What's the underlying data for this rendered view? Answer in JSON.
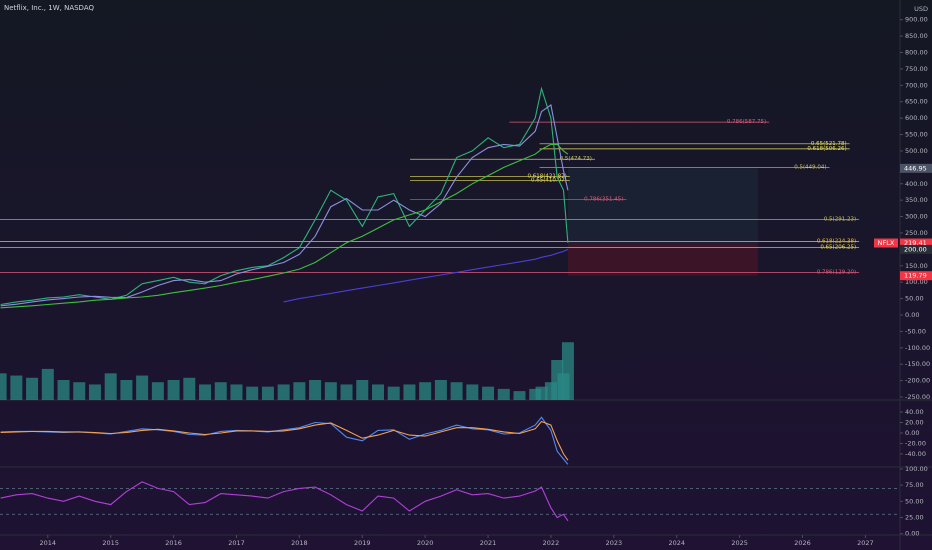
{
  "chart_data": [
    {
      "type": "line",
      "title": "Netflix, Inc., 1W, NASDAQ",
      "currency": "USD",
      "symbol": "NFLX",
      "x": [
        2013.25,
        2013.5,
        2013.75,
        2014,
        2014.25,
        2014.5,
        2014.75,
        2015,
        2015.25,
        2015.5,
        2015.75,
        2016,
        2016.25,
        2016.5,
        2016.75,
        2017,
        2017.25,
        2017.5,
        2017.75,
        2018,
        2018.25,
        2018.5,
        2018.75,
        2019,
        2019.25,
        2019.5,
        2019.75,
        2020,
        2020.25,
        2020.5,
        2020.75,
        2021,
        2021.25,
        2021.5,
        2021.75,
        2021.85,
        2022,
        2022.1,
        2022.2,
        2022.27
      ],
      "xlim": [
        2013.24,
        2027.55
      ],
      "xticks": [
        2014,
        2015,
        2016,
        2017,
        2018,
        2019,
        2020,
        2021,
        2022,
        2023,
        2024,
        2025,
        2026,
        2027
      ],
      "ylim": [
        -259,
        960
      ],
      "yticks": [
        {
          "value": 900,
          "label": "900.00"
        },
        {
          "value": 850,
          "label": "850.00"
        },
        {
          "value": 800,
          "label": "800.00"
        },
        {
          "value": 750,
          "label": "750.00"
        },
        {
          "value": 700,
          "label": "700.00"
        },
        {
          "value": 650,
          "label": "650.00"
        },
        {
          "value": 600,
          "label": "600.00"
        },
        {
          "value": 550,
          "label": "550.00"
        },
        {
          "value": 500,
          "label": "500.00"
        },
        {
          "value": 450,
          "label": "450.00"
        },
        {
          "value": 400,
          "label": "400.00"
        },
        {
          "value": 350,
          "label": "350.00"
        },
        {
          "value": 300,
          "label": "300.00"
        },
        {
          "value": 250,
          "label": "250.00"
        },
        {
          "value": 150,
          "label": "150.00"
        },
        {
          "value": 100,
          "label": "100.00"
        },
        {
          "value": 50,
          "label": "50.00"
        },
        {
          "value": 0,
          "label": "0.00"
        },
        {
          "value": -50,
          "label": "-50.00"
        },
        {
          "value": -100,
          "label": "-100.00"
        },
        {
          "value": -150,
          "label": "-150.00"
        },
        {
          "value": -200,
          "label": "-200.00"
        },
        {
          "value": -250,
          "label": "-250.00"
        }
      ],
      "series": [
        {
          "color": "#2db37a",
          "values": [
            32,
            40,
            45,
            52,
            55,
            62,
            55,
            48,
            60,
            95,
            105,
            115,
            100,
            95,
            120,
            135,
            145,
            150,
            175,
            205,
            290,
            380,
            350,
            270,
            360,
            370,
            270,
            320,
            370,
            480,
            500,
            540,
            510,
            520,
            600,
            690,
            600,
            420,
            380,
            220
          ]
        },
        {
          "color": "#8a8fe0",
          "values": [
            28,
            33,
            40,
            46,
            50,
            55,
            57,
            54,
            53,
            70,
            90,
            105,
            108,
            100,
            105,
            125,
            138,
            148,
            160,
            185,
            240,
            330,
            355,
            320,
            320,
            350,
            320,
            300,
            340,
            420,
            480,
            510,
            520,
            515,
            560,
            620,
            640,
            540,
            440,
            380
          ]
        },
        {
          "color": "#3fbf3f",
          "values": [
            22,
            25,
            28,
            32,
            36,
            40,
            45,
            48,
            52,
            55,
            60,
            68,
            75,
            82,
            90,
            100,
            108,
            118,
            128,
            140,
            160,
            190,
            220,
            240,
            265,
            290,
            305,
            320,
            345,
            370,
            400,
            425,
            450,
            470,
            490,
            505,
            520,
            520,
            500,
            490
          ]
        },
        {
          "color": "#4b3fd6",
          "values": [
            null,
            null,
            null,
            null,
            null,
            null,
            null,
            null,
            null,
            null,
            null,
            null,
            null,
            null,
            null,
            null,
            null,
            null,
            40,
            50,
            58,
            66,
            74,
            82,
            90,
            98,
            106,
            114,
            122,
            130,
            138,
            146,
            154,
            162,
            170,
            176,
            182,
            188,
            194,
            200
          ]
        }
      ],
      "annotations": [
        {
          "text": "0.786(587.75)",
          "value": 587.75,
          "x0": 2021.34,
          "x1": 2025.47,
          "color": "#e05a7a"
        },
        {
          "text": "0.65(521.78)",
          "value": 521.78,
          "x0": 2021.82,
          "x1": 2026.75,
          "color": "#e8e05a"
        },
        {
          "text": "0.618(506.26)",
          "value": 506.26,
          "x0": 2021.82,
          "x1": 2026.75,
          "color": "#e8e05a"
        },
        {
          "text": "0.5(474.73)",
          "value": 474.73,
          "x0": 2019.76,
          "x1": 2022.7,
          "color": "#c9c26a"
        },
        {
          "text": "0.5(449.04)",
          "value": 449.04,
          "x0": 2021.82,
          "x1": 2026.43,
          "color": "#c9c26a"
        },
        {
          "text": "0.618(421.87)",
          "value": 421.87,
          "x0": 2019.76,
          "x1": 2022.3,
          "color": "#e8e05a"
        },
        {
          "text": "0.65(410.07)",
          "value": 410.07,
          "x0": 2019.76,
          "x1": 2022.3,
          "color": "#e8e05a"
        },
        {
          "text": "0.786(351.45)",
          "value": 351.45,
          "x0": 2019.76,
          "x1": 2023.2,
          "color": "#e05a7a"
        },
        {
          "text": "0.5(291.23)",
          "value": 291.23,
          "x0": 2013.24,
          "x1": 2026.9,
          "color": "#c9c26a"
        },
        {
          "text": "0.618(224.38)",
          "value": 224.38,
          "x0": 2013.24,
          "x1": 2026.9,
          "color": "#e8c04a"
        },
        {
          "text": "0.65(206.25)",
          "value": 206.25,
          "x0": 2013.24,
          "x1": 2026.9,
          "color": "#e8e05a"
        },
        {
          "text": "0.786(129.20)",
          "value": 129.2,
          "x0": 2013.24,
          "x1": 2026.9,
          "color": "#e05a7a"
        }
      ],
      "price_tags": [
        {
          "value": 446.95,
          "color": "#4b5366"
        },
        {
          "value": 219.41,
          "color": "#f23645"
        },
        {
          "value": 200,
          "label": "200.00",
          "color": "#2a2e39"
        },
        {
          "value": 119.79,
          "color": "#f23645"
        }
      ]
    },
    {
      "type": "bar",
      "ylim": [
        0,
        900
      ],
      "series": [
        {
          "color": "#2a8a86",
          "values": [
            60,
            55,
            50,
            70,
            45,
            40,
            35,
            60,
            45,
            55,
            40,
            45,
            50,
            35,
            40,
            35,
            30,
            30,
            35,
            40,
            45,
            40,
            35,
            45,
            35,
            30,
            35,
            40,
            45,
            40,
            35,
            30,
            25,
            20,
            25,
            30,
            40,
            90,
            60,
            130
          ]
        }
      ]
    },
    {
      "type": "line",
      "ylim": [
        -65,
        63
      ],
      "yticks": [
        {
          "value": 40,
          "label": "40.00"
        },
        {
          "value": 20,
          "label": "20.00"
        },
        {
          "value": 0,
          "label": "0.00"
        },
        {
          "value": -20,
          "label": "-20.00"
        },
        {
          "value": -40,
          "label": "-40.00"
        }
      ],
      "series": [
        {
          "color": "#4d8bf5",
          "values": [
            2,
            3,
            3,
            2,
            1,
            2,
            0,
            -2,
            3,
            8,
            6,
            3,
            -3,
            -4,
            3,
            5,
            4,
            2,
            6,
            10,
            20,
            18,
            -8,
            -15,
            5,
            6,
            -12,
            -2,
            5,
            15,
            8,
            6,
            -2,
            0,
            15,
            30,
            5,
            -35,
            -50,
            -60
          ]
        },
        {
          "color": "#f5a04d",
          "values": [
            1,
            2,
            3,
            3,
            2,
            2,
            1,
            -1,
            1,
            5,
            7,
            4,
            0,
            -3,
            0,
            4,
            4,
            3,
            4,
            8,
            15,
            19,
            5,
            -10,
            -4,
            5,
            -4,
            -6,
            2,
            10,
            10,
            7,
            2,
            -1,
            8,
            22,
            15,
            -15,
            -40,
            -52
          ]
        }
      ]
    },
    {
      "type": "line",
      "ylim": [
        -2,
        103
      ],
      "yticks": [
        {
          "value": 100,
          "label": "100.00"
        },
        {
          "value": 75,
          "label": "75.00"
        },
        {
          "value": 50,
          "label": "50.00"
        },
        {
          "value": 25,
          "label": "25.00"
        },
        {
          "value": 0,
          "label": "0.00"
        }
      ],
      "levels": [
        70,
        30
      ],
      "series": [
        {
          "color": "#b040d8",
          "values": [
            55,
            60,
            62,
            55,
            50,
            58,
            50,
            45,
            65,
            80,
            70,
            65,
            45,
            48,
            62,
            60,
            58,
            55,
            65,
            70,
            72,
            60,
            45,
            35,
            58,
            55,
            35,
            50,
            58,
            68,
            60,
            62,
            55,
            58,
            66,
            72,
            40,
            25,
            30,
            20
          ]
        }
      ]
    }
  ]
}
